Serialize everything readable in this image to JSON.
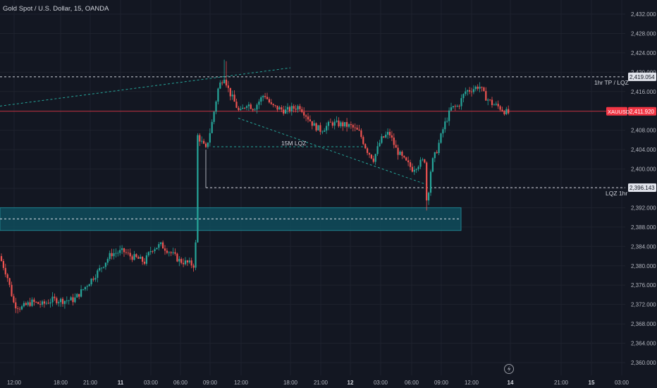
{
  "header": {
    "title": "Gold Spot / U.S. Dollar, 15, OANDA"
  },
  "colors": {
    "background": "#131722",
    "grid": "#1e222d",
    "axis_text": "#b2b5be",
    "up": "#26a69a",
    "down": "#ef5350",
    "zone_fill": "#0f4c5c",
    "zone_border": "#20808d",
    "price_line": "#f23645",
    "line_white": "#d1d4dc",
    "line_teal": "#26a69a"
  },
  "chart_data": {
    "type": "candlestick",
    "title": "Gold Spot / U.S. Dollar, 15, OANDA",
    "ylim": [
      2358,
      2434
    ],
    "y_ticks": [
      "2,432.000",
      "2,428.000",
      "2,424.000",
      "2,420.000",
      "2,416.000",
      "2,412.000",
      "2,408.000",
      "2,404.000",
      "2,400.000",
      "2,396.000",
      "2,392.000",
      "2,388.000",
      "2,384.000",
      "2,380.000",
      "2,376.000",
      "2,372.000",
      "2,368.000",
      "2,364.000",
      "2,360.000"
    ],
    "x_ticks": [
      "12:00",
      "18:00",
      "21:00",
      "11",
      "03:00",
      "06:00",
      "09:00",
      "12:00",
      "18:00",
      "21:00",
      "12",
      "03:00",
      "06:00",
      "09:00",
      "12:00",
      "14",
      "21:00",
      "15",
      "03:00"
    ],
    "x_tick_bold": [
      false,
      false,
      false,
      true,
      false,
      false,
      false,
      false,
      false,
      false,
      true,
      false,
      false,
      false,
      false,
      true,
      false,
      true,
      false
    ],
    "key_prices": [
      {
        "id": "tp",
        "price": 2419.054,
        "label": "2,419.054",
        "annotation": "1hr TP / LQZ",
        "style": "dashed"
      },
      {
        "id": "current",
        "price": 2411.92,
        "label": "2,411.920",
        "symbol": "XAUUSD",
        "style": "solid"
      },
      {
        "id": "lqz1hr",
        "price": 2396.143,
        "label": "2,396.143",
        "annotation": "LQZ 1hr",
        "style": "dashed"
      }
    ],
    "zone": {
      "top": 2392.0,
      "bottom": 2387.3,
      "mid": 2389.7
    },
    "annotations": [
      {
        "text": "15M LQZ",
        "price": 2404.5
      }
    ],
    "candle_key": [
      {
        "t": "start",
        "close": 2381.0
      },
      {
        "t": "low_1",
        "close": 2371.0
      },
      {
        "t": "rise_1",
        "close": 2382.0
      },
      {
        "t": "dip_1",
        "close": 2380.0
      },
      {
        "t": "spike",
        "close": 2407.0
      },
      {
        "t": "high",
        "close": 2419.8
      },
      {
        "t": "range",
        "close": 2412.0
      },
      {
        "t": "low_2",
        "close": 2393.0
      },
      {
        "t": "recovery",
        "close": 2416.0
      },
      {
        "t": "last",
        "close": 2411.9
      }
    ]
  }
}
